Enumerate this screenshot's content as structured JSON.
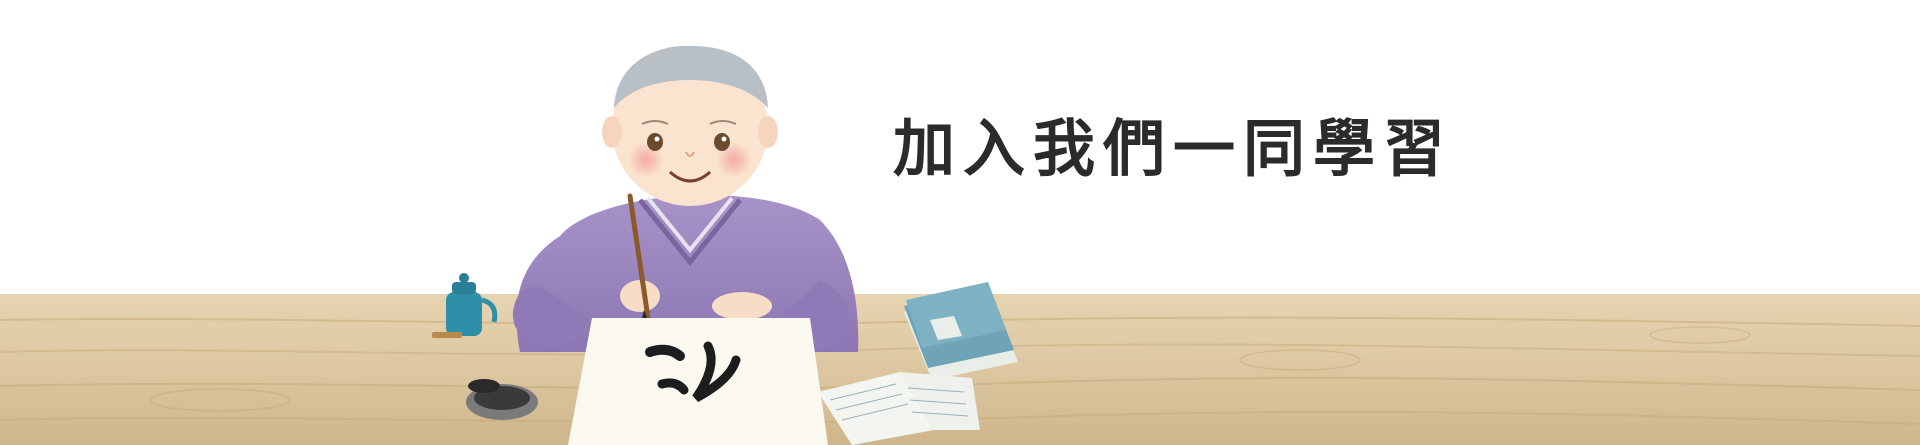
{
  "banner": {
    "headline": "加入我們一同學習",
    "colors": {
      "background": "#ffffff",
      "table": "#dcc7a1",
      "robe": "#9b86bd",
      "ink": "#1d1d1d",
      "teapot": "#2e8fa8",
      "book_cover": "#6fa4b6"
    },
    "illustration": {
      "subject": "monk-practicing-calligraphy",
      "paper_calligraphy": "之"
    }
  }
}
